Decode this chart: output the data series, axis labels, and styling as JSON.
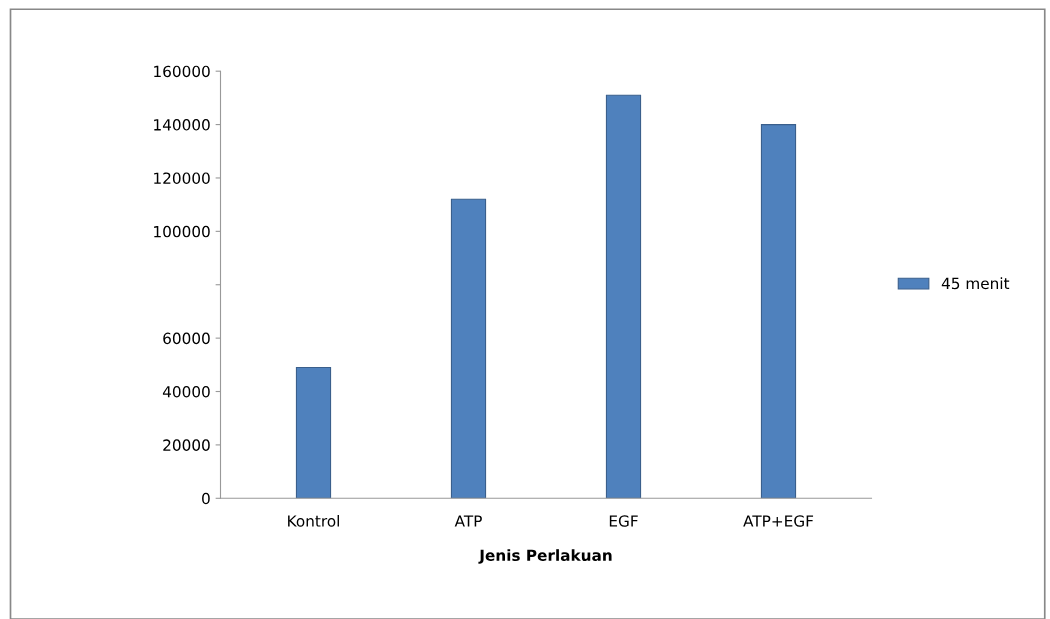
{
  "chart_data": {
    "type": "bar",
    "xlabel": "Jenis Perlakuan",
    "categories": [
      "Kontrol",
      "ATP",
      "EGF",
      "ATP+EGF"
    ],
    "series": [
      {
        "name": "45 menit",
        "color": "#4f81bd",
        "values": [
          49000,
          112000,
          151000,
          140000
        ]
      }
    ],
    "ylim": [
      0,
      160000
    ],
    "yticks": [
      0,
      20000,
      40000,
      60000,
      {
        "value": 80000,
        "label": null
      },
      100000,
      120000,
      140000,
      160000
    ],
    "grid": false,
    "legend": "right"
  }
}
